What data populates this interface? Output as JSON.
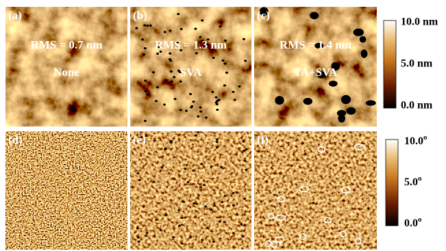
{
  "panels": [
    {
      "label": "(a)",
      "rms": "RMS = 0.7 nm",
      "treatment": "None"
    },
    {
      "label": "(b)",
      "rms": "RMS = 1.3 nm",
      "treatment": "SVA"
    },
    {
      "label": "(c)",
      "rms": "RMS = 1.4 nm",
      "treatment": "TA+SVA"
    },
    {
      "label": "(d)"
    },
    {
      "label": "(e)"
    },
    {
      "label": "(f)"
    }
  ],
  "colorbars": [
    {
      "ticks": [
        "10.0  nm",
        "5.0  nm",
        "0.0  nm"
      ]
    },
    {
      "ticks": [
        {
          "text": "10.0",
          "sup": "o"
        },
        {
          "text": "5.0",
          "sup": "o"
        },
        {
          "text": "0.0",
          "sup": "o"
        }
      ]
    }
  ]
}
